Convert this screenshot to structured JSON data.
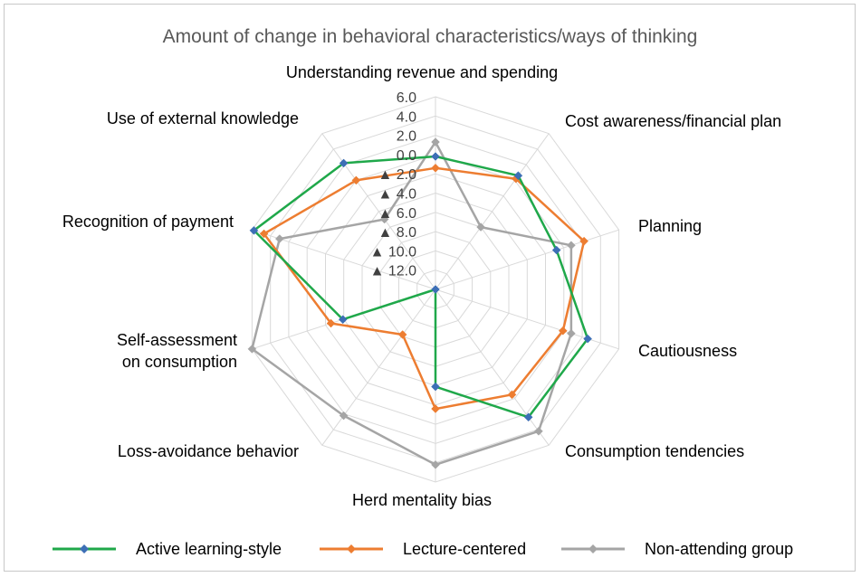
{
  "chart_data": {
    "type": "radar",
    "title": "Amount of change in behavioral characteristics/ways of thinking",
    "categories": [
      "Understanding revenue and spending",
      "Cost awareness/financial plan",
      "Planning",
      "Cautiousness",
      "Consumption tendencies",
      "Herd mentality bias",
      "Loss-avoidance behavior",
      "Self-assessment on consumption",
      "Recognition of payment",
      "Use of external knowledge"
    ],
    "axis_ticks": [
      "6.0",
      "4.0",
      "2.0",
      "0.0",
      "▲ 2.0",
      "▲ 4.0",
      "▲ 6.0",
      "▲ 8.0",
      "▲ 10.0",
      "▲ 12.0"
    ],
    "rlim": [
      -14,
      6
    ],
    "grid": true,
    "legend_position": "bottom",
    "series": [
      {
        "name": "Active learning-style",
        "color": "#1fa84a",
        "marker_color": "#3d6fb6",
        "values": [
          -0.2,
          0.6,
          -0.8,
          2.6,
          2.4,
          -3.9,
          -14.0,
          -3.9,
          5.8,
          2.2
        ]
      },
      {
        "name": "Lecture-centered",
        "color": "#ed7d31",
        "marker_color": "#ed7d31",
        "values": [
          -1.4,
          0.2,
          2.2,
          -0.1,
          -0.5,
          -1.6,
          -8.2,
          -2.6,
          4.7,
          0.0
        ]
      },
      {
        "name": "Non-attending group",
        "color": "#a5a5a5",
        "marker_color": "#a5a5a5",
        "values": [
          1.3,
          -6.0,
          0.8,
          0.8,
          4.2,
          4.2,
          2.2,
          6.0,
          3.0,
          -5.0
        ]
      }
    ]
  }
}
